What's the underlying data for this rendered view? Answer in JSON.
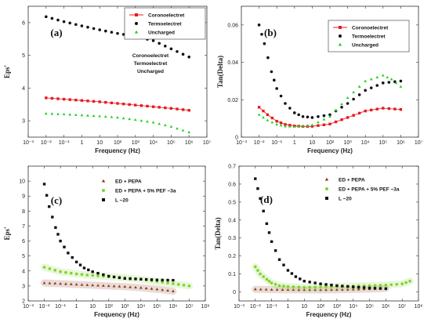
{
  "chart_data": [
    {
      "type": "scatter",
      "panel_label": "(a)",
      "xlabel": "Frequency (Hz)",
      "ylabel": "Eps'",
      "x_scale": "log",
      "xlim": [
        0.001,
        10000000
      ],
      "ylim": [
        2.5,
        6.5
      ],
      "x_tick_labels": [
        "10⁻³",
        "10⁻²",
        "10⁻¹",
        "1",
        "10",
        "10²",
        "10³",
        "10⁴",
        "10⁵",
        "10⁶",
        "10⁷"
      ],
      "y_ticks": [
        3,
        4,
        5,
        6
      ],
      "legend": {
        "position": "top-right",
        "entries": [
          "Coronoelectret",
          "Termoelectret",
          "Uncharged"
        ]
      },
      "annotations": [
        "Coronoelectret",
        "Termoelectret",
        "Uncharged"
      ],
      "series": [
        {
          "name": "Coronoelectret",
          "color": "#e8191e",
          "marker": "square",
          "line": true,
          "x": [
            0.01,
            0.1,
            1,
            10,
            100,
            1000,
            10000,
            100000,
            1000000
          ],
          "y": [
            3.7,
            3.66,
            3.62,
            3.58,
            3.53,
            3.48,
            3.43,
            3.38,
            3.32
          ]
        },
        {
          "name": "Termoelectret",
          "color": "#111111",
          "marker": "circle",
          "line": false,
          "x": [
            0.01,
            0.1,
            1,
            10,
            100,
            1000,
            10000,
            100000,
            1000000
          ],
          "y": [
            6.18,
            6.03,
            5.9,
            5.78,
            5.67,
            5.58,
            5.45,
            5.2,
            4.95
          ]
        },
        {
          "name": "Uncharged",
          "color": "#1fd11f",
          "marker": "triangle",
          "line": false,
          "x": [
            0.01,
            0.1,
            1,
            10,
            100,
            1000,
            10000,
            100000,
            1000000
          ],
          "y": [
            3.22,
            3.2,
            3.17,
            3.14,
            3.1,
            3.03,
            2.95,
            2.82,
            2.65
          ]
        }
      ]
    },
    {
      "type": "scatter",
      "panel_label": "(b)",
      "xlabel": "Frequency (Hz)",
      "ylabel": "Tan(Delta)",
      "x_scale": "log",
      "xlim": [
        0.001,
        10000000
      ],
      "ylim": [
        0,
        0.07
      ],
      "x_tick_labels": [
        "10⁻³",
        "10⁻²",
        "10⁻¹",
        "1",
        "10",
        "10²",
        "10³",
        "10⁴",
        "10⁵",
        "10⁶",
        "10⁷"
      ],
      "y_tick_labels": [
        "0",
        "0.02",
        "0.04",
        "0.06"
      ],
      "legend": {
        "position": "top-right",
        "entries": [
          "Coronoelectret",
          "Termoelectret",
          "Uncharged"
        ]
      },
      "series": [
        {
          "name": "Coronoelectret",
          "color": "#e8191e",
          "marker": "square",
          "line": true,
          "x": [
            0.01,
            0.03,
            0.1,
            0.3,
            1,
            3,
            10,
            100,
            1000,
            10000,
            100000,
            1000000
          ],
          "y": [
            0.016,
            0.012,
            0.0085,
            0.0068,
            0.006,
            0.0057,
            0.0058,
            0.007,
            0.0105,
            0.014,
            0.0155,
            0.0148
          ]
        },
        {
          "name": "Termoelectret",
          "color": "#111111",
          "marker": "circle",
          "line": false,
          "x": [
            0.01,
            0.02,
            0.05,
            0.1,
            0.3,
            1,
            3,
            10,
            100,
            1000,
            10000,
            100000,
            1000000
          ],
          "y": [
            0.06,
            0.05,
            0.035,
            0.026,
            0.018,
            0.013,
            0.011,
            0.0105,
            0.012,
            0.018,
            0.025,
            0.029,
            0.03
          ]
        },
        {
          "name": "Uncharged",
          "color": "#1fd11f",
          "marker": "triangle",
          "line": false,
          "x": [
            0.01,
            0.03,
            0.1,
            0.3,
            1,
            3,
            10,
            100,
            1000,
            10000,
            100000,
            300000,
            1000000
          ],
          "y": [
            0.012,
            0.009,
            0.0068,
            0.0058,
            0.0056,
            0.0058,
            0.0065,
            0.011,
            0.021,
            0.03,
            0.033,
            0.031,
            0.027
          ]
        }
      ]
    },
    {
      "type": "scatter",
      "panel_label": "(c)",
      "xlabel": "Frequency (Hz)",
      "ylabel": "Eps'",
      "x_scale": "log",
      "xlim": [
        0.001,
        100000000
      ],
      "ylim": [
        2,
        11
      ],
      "x_tick_labels": [
        "10⁻³",
        "10⁻²",
        "10⁻¹",
        "1",
        "10",
        "10²",
        "10³",
        "10⁴",
        "10⁵",
        "10⁶",
        "10⁷",
        "10⁸"
      ],
      "y_ticks": [
        2,
        3,
        4,
        5,
        6,
        7,
        8,
        9,
        10
      ],
      "legend": {
        "position": "top-right",
        "entries": [
          "ED + PEPA",
          "ED + PEPA + 5% PEF −3a",
          "L −20"
        ]
      },
      "series": [
        {
          "name": "ED + PEPA",
          "color": "#8b3a1a",
          "marker": "triangle",
          "line": false,
          "x": [
            0.01,
            0.1,
            1,
            10,
            100,
            1000,
            10000,
            100000,
            1000000
          ],
          "y": [
            3.2,
            3.15,
            3.1,
            3.05,
            3.0,
            2.95,
            2.88,
            2.78,
            2.65
          ]
        },
        {
          "name": "ED + PEPA + 5% PEF −3a",
          "color": "#7fd32a",
          "marker": "circle",
          "line": false,
          "x": [
            0.01,
            0.1,
            1,
            10,
            100,
            1000,
            10000,
            100000,
            1000000,
            10000000
          ],
          "y": [
            4.25,
            3.95,
            3.8,
            3.7,
            3.62,
            3.55,
            3.45,
            3.3,
            3.15,
            3.0
          ]
        },
        {
          "name": "L −20",
          "color": "#111111",
          "marker": "square",
          "line": false,
          "x": [
            0.01,
            0.02,
            0.05,
            0.1,
            0.3,
            1,
            3,
            10,
            100,
            1000,
            10000,
            100000,
            1000000
          ],
          "y": [
            9.8,
            8.3,
            6.9,
            6.0,
            5.2,
            4.6,
            4.2,
            3.95,
            3.65,
            3.5,
            3.45,
            3.4,
            3.38
          ]
        }
      ]
    },
    {
      "type": "scatter",
      "panel_label": "(d)",
      "xlabel": "Frequency (Hz)",
      "ylabel": "Tan(Delta)",
      "x_scale": "log",
      "xlim": [
        0.001,
        100000000
      ],
      "ylim": [
        -0.05,
        0.7
      ],
      "x_tick_labels": [
        "10⁻³",
        "10⁻²",
        "10⁻¹",
        "1",
        "10",
        "10²",
        "10³",
        "10⁴",
        "10⁵",
        "10⁶",
        "10⁷",
        "10⁸"
      ],
      "y_tick_labels": [
        "0",
        "0.1",
        "0.2",
        "0.3",
        "0.4",
        "0.5",
        "0.6",
        "0.7"
      ],
      "legend": {
        "position": "top-right",
        "entries": [
          "ED + PEPA",
          "ED + PEPA + 5% PEF −3a",
          "L −20"
        ]
      },
      "series": [
        {
          "name": "ED + PEPA",
          "color": "#8b3a1a",
          "marker": "triangle",
          "line": false,
          "x": [
            0.01,
            0.1,
            1,
            10,
            100,
            1000,
            10000,
            100000,
            1000000
          ],
          "y": [
            0.015,
            0.013,
            0.012,
            0.011,
            0.011,
            0.012,
            0.014,
            0.016,
            0.02
          ]
        },
        {
          "name": "ED + PEPA + 5% PEF −3a",
          "color": "#7fd32a",
          "marker": "circle",
          "line": false,
          "x": [
            0.01,
            0.02,
            0.05,
            0.1,
            0.3,
            1,
            10,
            100,
            1000,
            10000,
            100000,
            1000000,
            10000000,
            30000000
          ],
          "y": [
            0.14,
            0.1,
            0.07,
            0.05,
            0.035,
            0.03,
            0.025,
            0.028,
            0.03,
            0.033,
            0.035,
            0.038,
            0.045,
            0.06
          ]
        },
        {
          "name": "L −20",
          "color": "#111111",
          "marker": "square",
          "line": false,
          "x": [
            0.01,
            0.02,
            0.05,
            0.1,
            0.3,
            1,
            3,
            10,
            100,
            1000,
            10000,
            100000,
            1000000
          ],
          "y": [
            0.63,
            0.52,
            0.38,
            0.28,
            0.18,
            0.12,
            0.085,
            0.06,
            0.045,
            0.035,
            0.028,
            0.022,
            0.018
          ]
        }
      ]
    }
  ]
}
